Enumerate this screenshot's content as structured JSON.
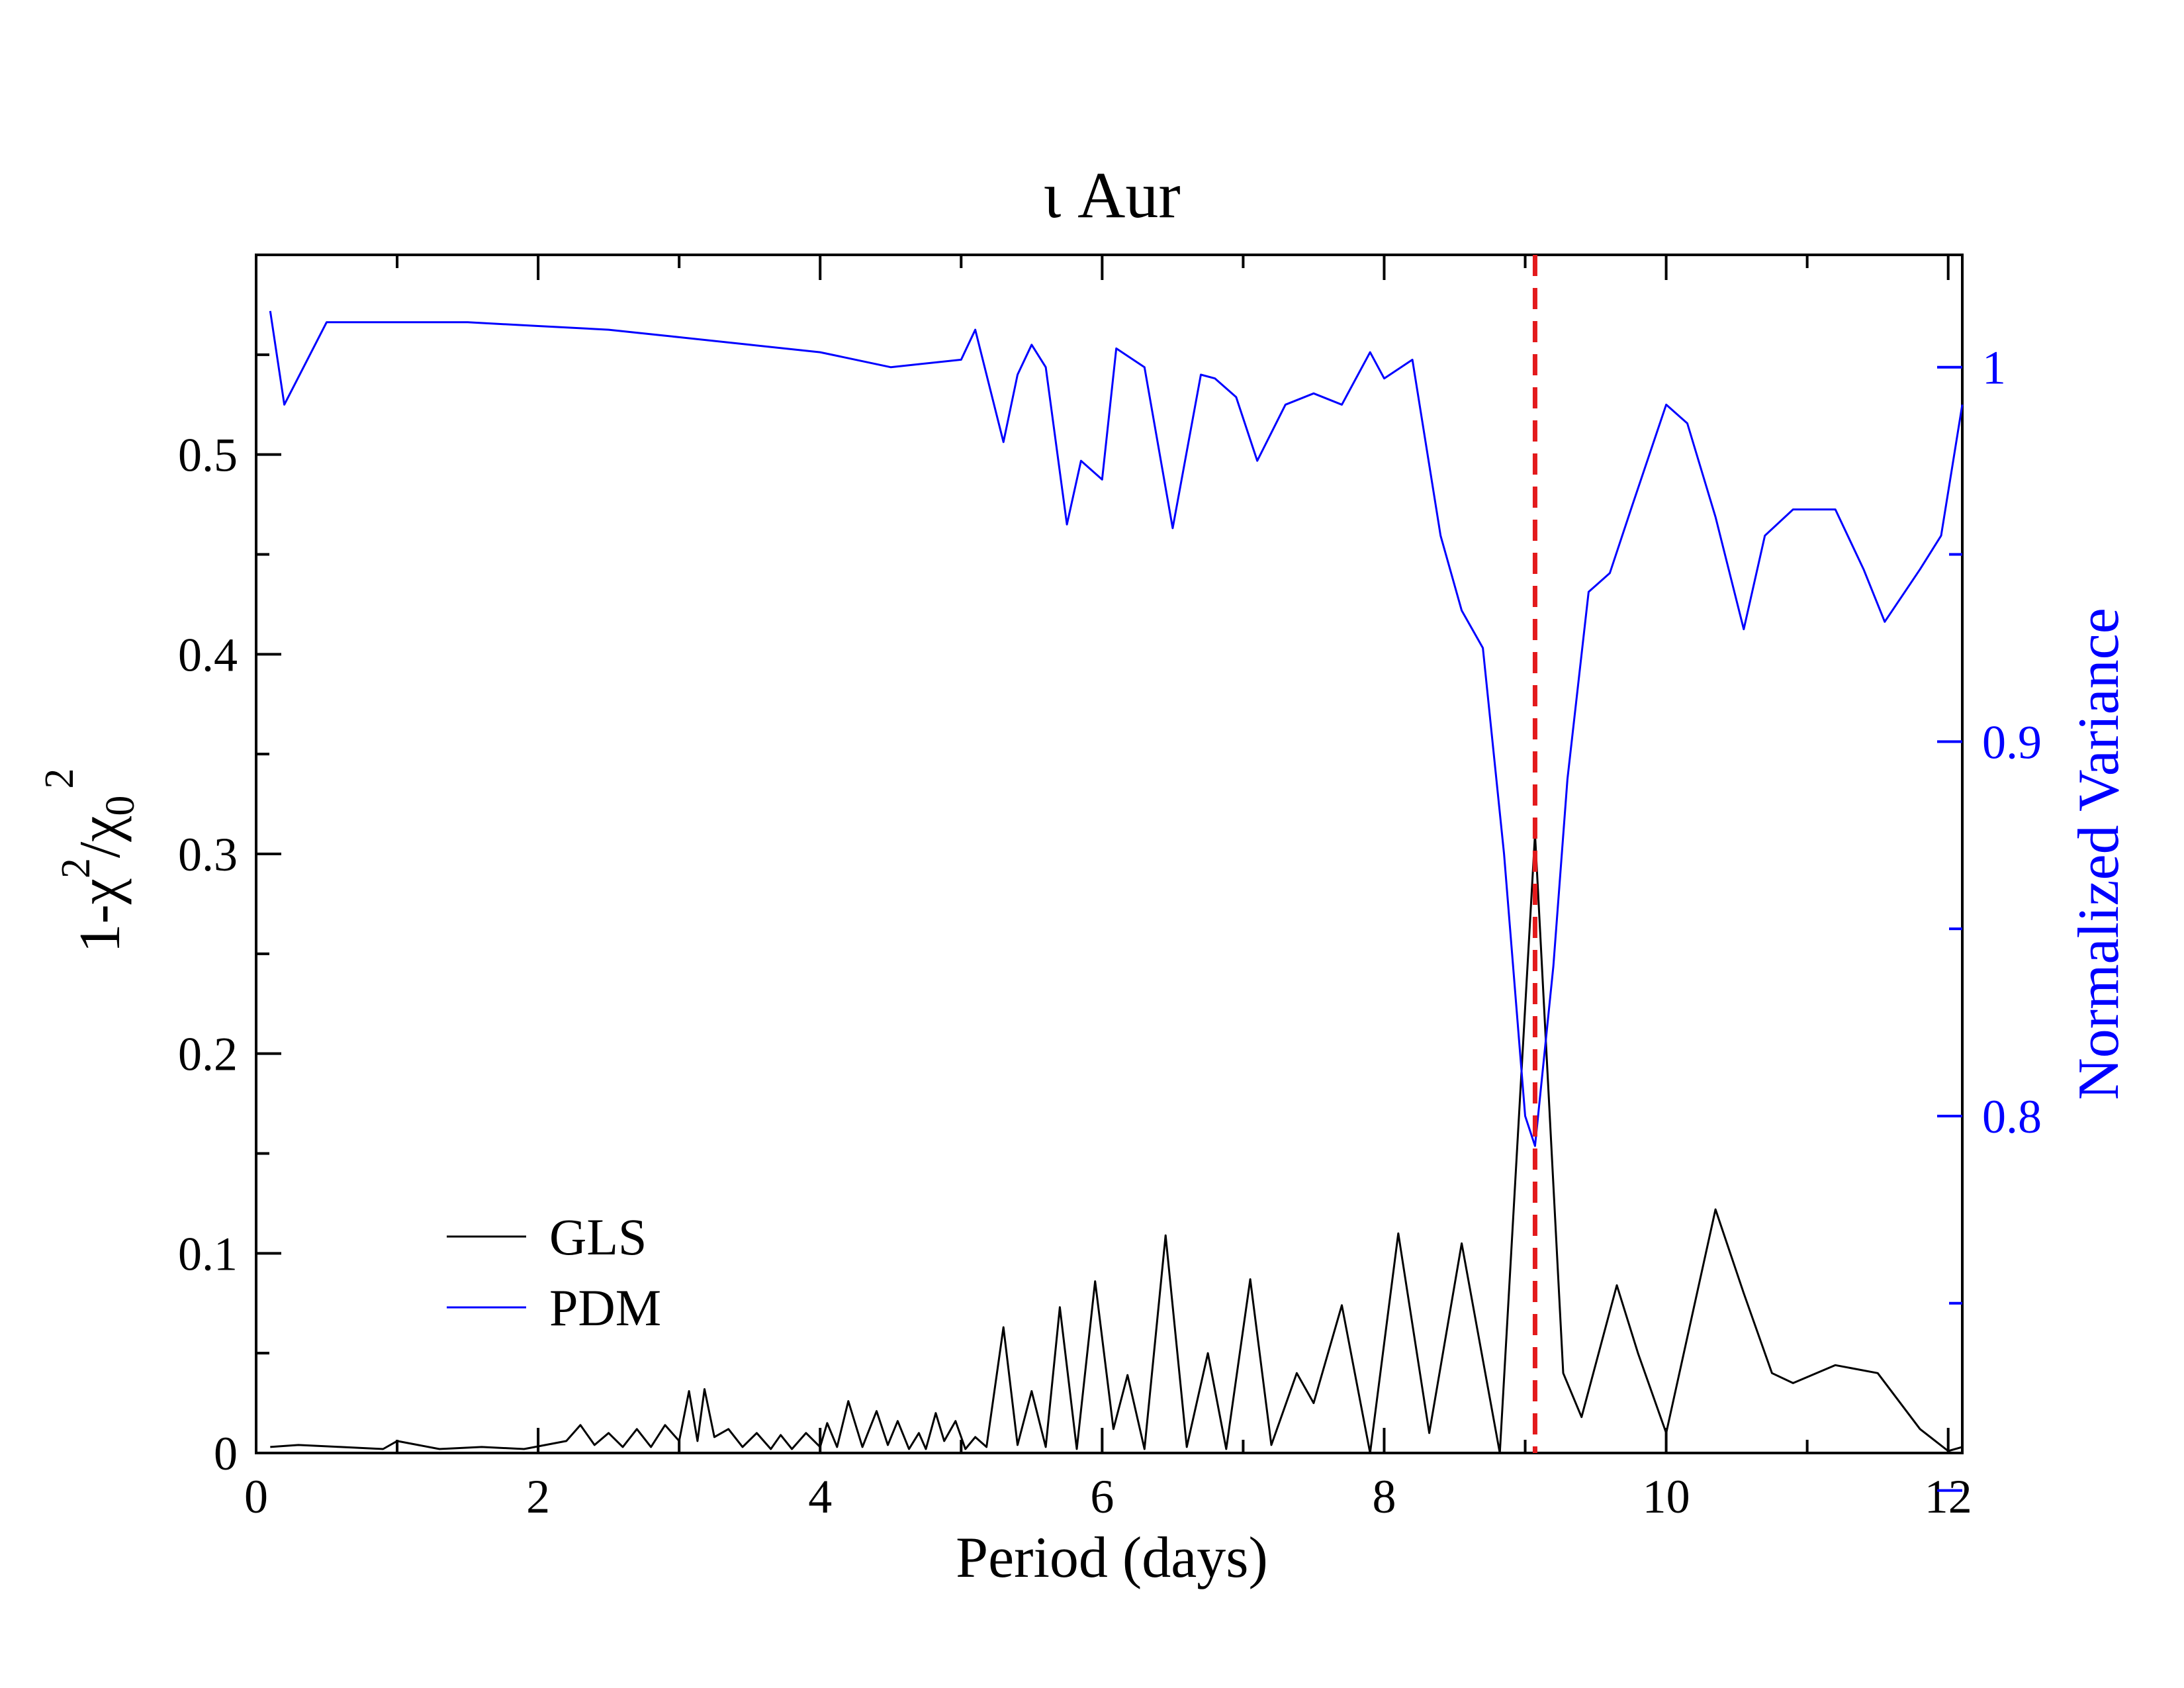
{
  "chart_data": {
    "type": "line",
    "title": "ι Aur",
    "xlabel": "Period (days)",
    "ylabel": {
      "prefix": "1-χ",
      "sup1": "2",
      "mid": "/χ",
      "sub": "0",
      "sup2": "2"
    },
    "y2label": "Normalized Variance",
    "xlim": [
      0,
      12.1
    ],
    "ylim": [
      0,
      0.6
    ],
    "y2lim": [
      0.71,
      1.03
    ],
    "x_ticks": [
      0,
      2,
      4,
      6,
      8,
      10,
      12
    ],
    "x_tick_labels": [
      "0",
      "2",
      "4",
      "6",
      "8",
      "10",
      "12"
    ],
    "y_ticks": [
      0,
      0.1,
      0.2,
      0.3,
      0.4,
      0.5
    ],
    "y_tick_labels": [
      "0",
      "0.1",
      "0.2",
      "0.3",
      "0.4",
      "0.5"
    ],
    "y2_ticks": [
      0.8,
      0.9,
      1.0
    ],
    "y2_tick_labels": [
      "0.8",
      "0.9",
      "1"
    ],
    "grid": false,
    "legend_position": "bottom-left",
    "vline": {
      "x": 9.07,
      "color": "#e31a1c",
      "style": "dashed"
    },
    "series": [
      {
        "name": "GLS",
        "axis": "left",
        "color": "#000000",
        "points": [
          [
            0.1,
            0.003
          ],
          [
            0.3,
            0.004
          ],
          [
            0.6,
            0.003
          ],
          [
            0.9,
            0.002
          ],
          [
            1.0,
            0.006
          ],
          [
            1.3,
            0.002
          ],
          [
            1.6,
            0.003
          ],
          [
            1.9,
            0.002
          ],
          [
            2.2,
            0.006
          ],
          [
            2.3,
            0.014
          ],
          [
            2.4,
            0.004
          ],
          [
            2.5,
            0.01
          ],
          [
            2.6,
            0.003
          ],
          [
            2.7,
            0.012
          ],
          [
            2.8,
            0.003
          ],
          [
            2.9,
            0.014
          ],
          [
            3.0,
            0.006
          ],
          [
            3.07,
            0.031
          ],
          [
            3.13,
            0.006
          ],
          [
            3.18,
            0.032
          ],
          [
            3.25,
            0.008
          ],
          [
            3.35,
            0.012
          ],
          [
            3.45,
            0.003
          ],
          [
            3.55,
            0.01
          ],
          [
            3.65,
            0.002
          ],
          [
            3.72,
            0.009
          ],
          [
            3.8,
            0.002
          ],
          [
            3.9,
            0.01
          ],
          [
            4.0,
            0.003
          ],
          [
            4.05,
            0.015
          ],
          [
            4.12,
            0.003
          ],
          [
            4.2,
            0.026
          ],
          [
            4.3,
            0.003
          ],
          [
            4.4,
            0.021
          ],
          [
            4.48,
            0.004
          ],
          [
            4.55,
            0.016
          ],
          [
            4.63,
            0.002
          ],
          [
            4.7,
            0.01
          ],
          [
            4.75,
            0.002
          ],
          [
            4.82,
            0.02
          ],
          [
            4.88,
            0.006
          ],
          [
            4.96,
            0.016
          ],
          [
            5.03,
            0.002
          ],
          [
            5.1,
            0.008
          ],
          [
            5.18,
            0.003
          ],
          [
            5.3,
            0.063
          ],
          [
            5.4,
            0.004
          ],
          [
            5.5,
            0.031
          ],
          [
            5.6,
            0.003
          ],
          [
            5.7,
            0.073
          ],
          [
            5.82,
            0.002
          ],
          [
            5.95,
            0.086
          ],
          [
            6.08,
            0.012
          ],
          [
            6.18,
            0.039
          ],
          [
            6.3,
            0.002
          ],
          [
            6.45,
            0.109
          ],
          [
            6.6,
            0.003
          ],
          [
            6.75,
            0.05
          ],
          [
            6.88,
            0.002
          ],
          [
            7.05,
            0.087
          ],
          [
            7.2,
            0.004
          ],
          [
            7.38,
            0.04
          ],
          [
            7.5,
            0.025
          ],
          [
            7.7,
            0.074
          ],
          [
            7.9,
            0.0
          ],
          [
            8.1,
            0.11
          ],
          [
            8.32,
            0.01
          ],
          [
            8.55,
            0.105
          ],
          [
            8.82,
            0.0
          ],
          [
            9.07,
            0.31
          ],
          [
            9.27,
            0.04
          ],
          [
            9.4,
            0.018
          ],
          [
            9.65,
            0.084
          ],
          [
            9.8,
            0.05
          ],
          [
            10.0,
            0.01
          ],
          [
            10.35,
            0.122
          ],
          [
            10.55,
            0.08
          ],
          [
            10.75,
            0.04
          ],
          [
            10.9,
            0.035
          ],
          [
            11.2,
            0.044
          ],
          [
            11.5,
            0.04
          ],
          [
            11.8,
            0.012
          ],
          [
            12.0,
            0.001
          ],
          [
            12.1,
            0.003
          ]
        ]
      },
      {
        "name": "PDM",
        "axis": "right",
        "color": "#0000ff",
        "points": [
          [
            0.1,
            1.015
          ],
          [
            0.2,
            0.99
          ],
          [
            0.5,
            1.012
          ],
          [
            1.0,
            1.012
          ],
          [
            1.5,
            1.012
          ],
          [
            2.0,
            1.011
          ],
          [
            2.5,
            1.01
          ],
          [
            3.0,
            1.008
          ],
          [
            3.5,
            1.006
          ],
          [
            4.0,
            1.004
          ],
          [
            4.5,
            1.0
          ],
          [
            5.0,
            1.002
          ],
          [
            5.1,
            1.01
          ],
          [
            5.2,
            0.995
          ],
          [
            5.3,
            0.98
          ],
          [
            5.4,
            0.998
          ],
          [
            5.5,
            1.006
          ],
          [
            5.6,
            1.0
          ],
          [
            5.75,
            0.958
          ],
          [
            5.85,
            0.975
          ],
          [
            6.0,
            0.97
          ],
          [
            6.1,
            1.005
          ],
          [
            6.3,
            1.0
          ],
          [
            6.5,
            0.957
          ],
          [
            6.7,
            0.998
          ],
          [
            6.8,
            0.997
          ],
          [
            6.95,
            0.992
          ],
          [
            7.1,
            0.975
          ],
          [
            7.3,
            0.99
          ],
          [
            7.5,
            0.993
          ],
          [
            7.7,
            0.99
          ],
          [
            7.9,
            1.004
          ],
          [
            8.0,
            0.997
          ],
          [
            8.2,
            1.002
          ],
          [
            8.4,
            0.955
          ],
          [
            8.55,
            0.935
          ],
          [
            8.7,
            0.925
          ],
          [
            8.85,
            0.87
          ],
          [
            9.0,
            0.8
          ],
          [
            9.07,
            0.792
          ],
          [
            9.2,
            0.84
          ],
          [
            9.3,
            0.89
          ],
          [
            9.45,
            0.94
          ],
          [
            9.6,
            0.945
          ],
          [
            9.75,
            0.962
          ],
          [
            10.0,
            0.99
          ],
          [
            10.15,
            0.985
          ],
          [
            10.35,
            0.96
          ],
          [
            10.55,
            0.93
          ],
          [
            10.7,
            0.955
          ],
          [
            10.9,
            0.962
          ],
          [
            11.2,
            0.962
          ],
          [
            11.4,
            0.946
          ],
          [
            11.55,
            0.932
          ],
          [
            11.8,
            0.946
          ],
          [
            11.95,
            0.955
          ],
          [
            12.1,
            0.99
          ]
        ]
      }
    ]
  }
}
